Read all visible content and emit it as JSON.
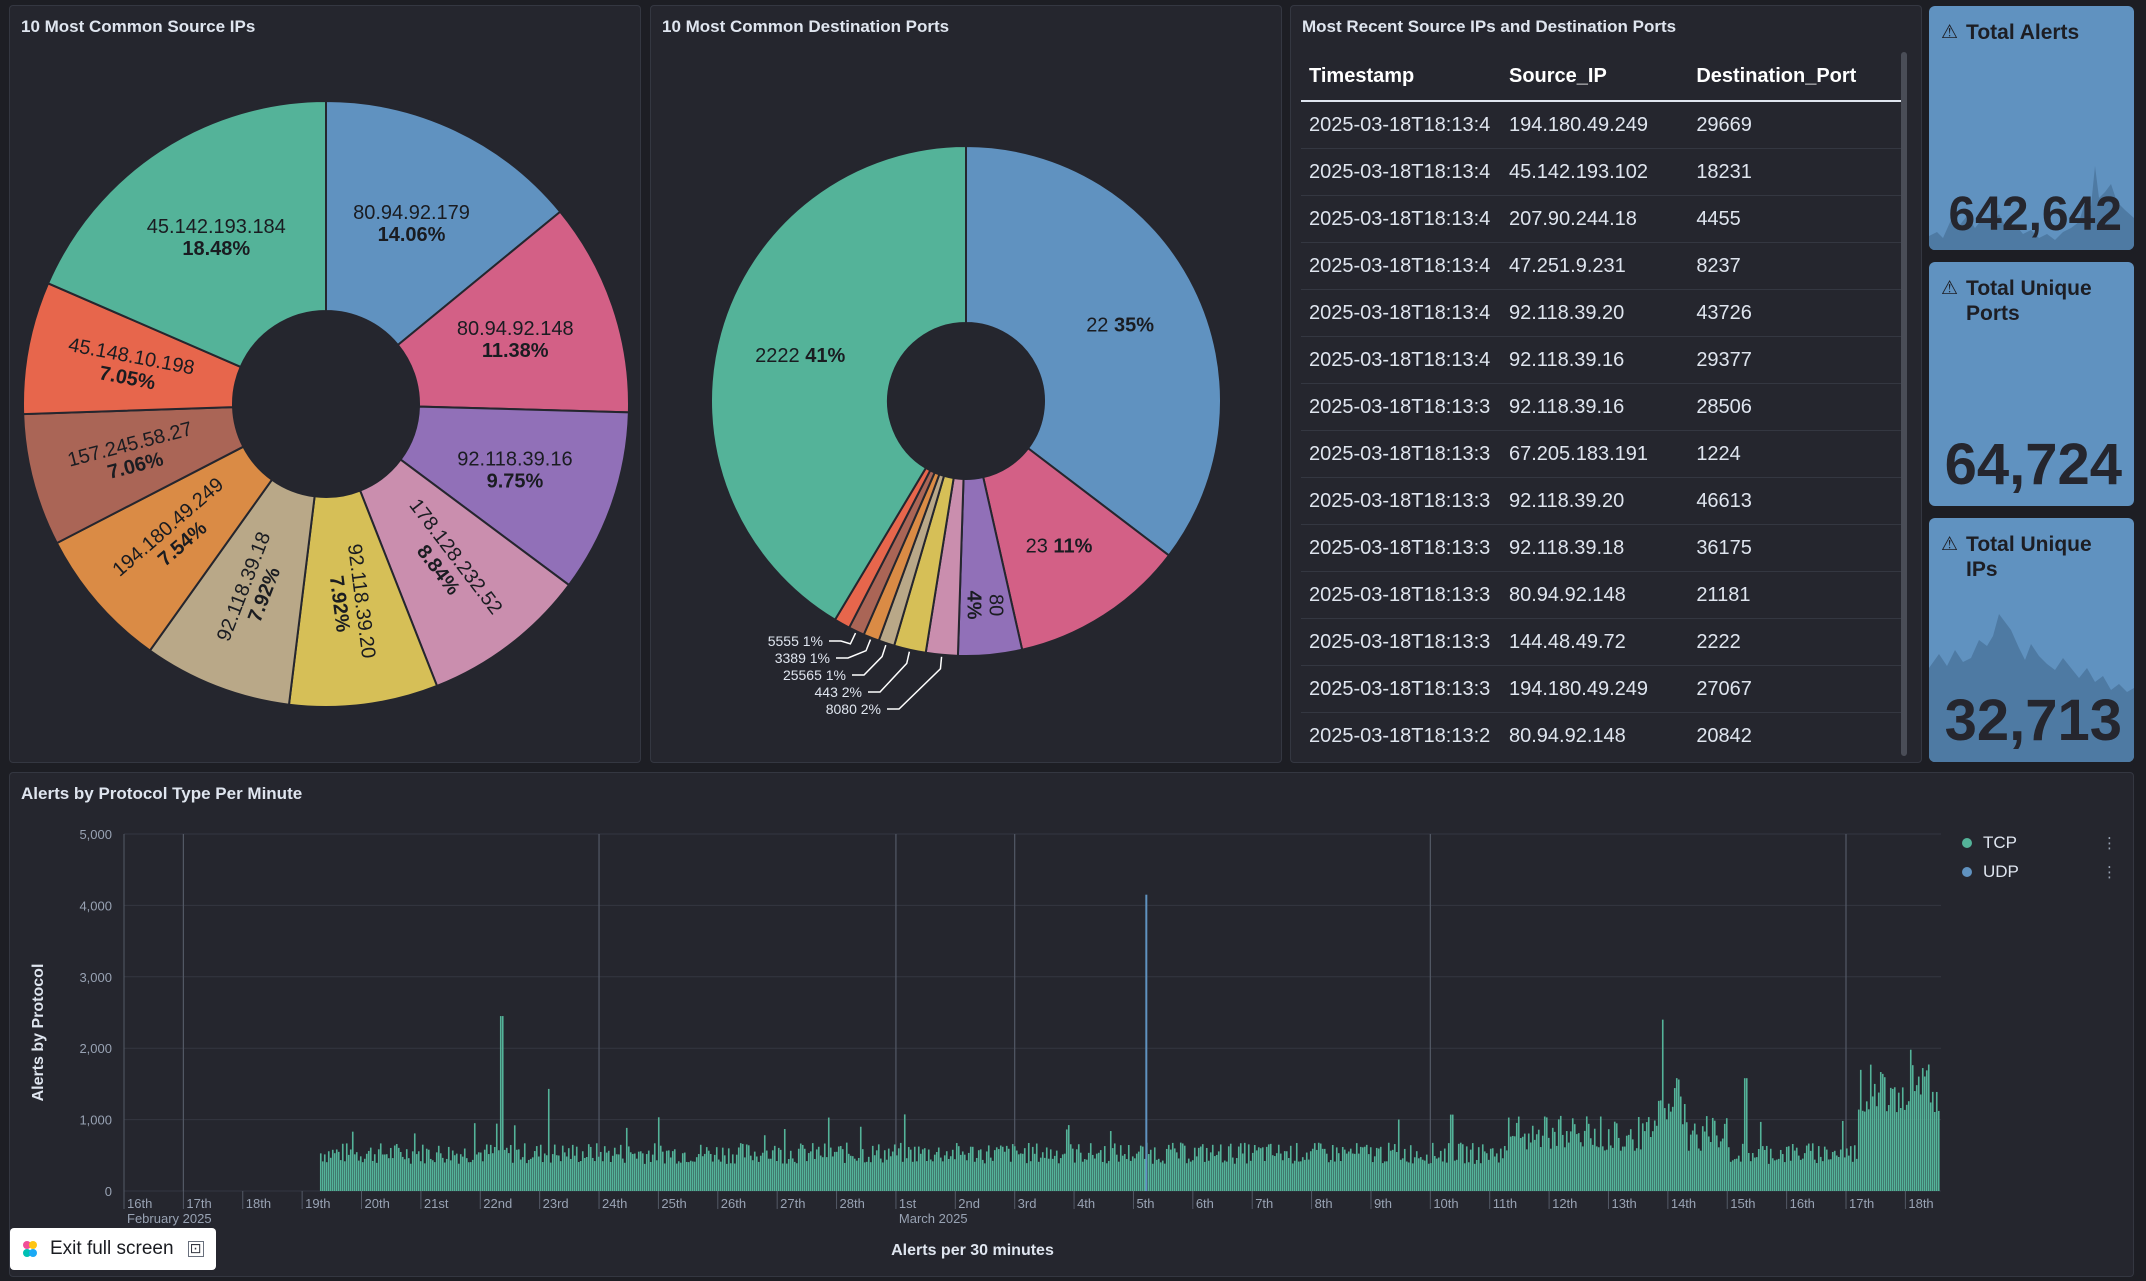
{
  "panels": {
    "source_ips": {
      "title": "10 Most Common Source IPs"
    },
    "dest_ports": {
      "title": "10 Most Common Destination Ports"
    },
    "recent": {
      "title": "Most Recent Source IPs and Destination Ports"
    },
    "protocol": {
      "title": "Alerts by Protocol Type Per Minute"
    }
  },
  "chart_data": [
    {
      "type": "pie",
      "slices": [
        {
          "label": "80.94.92.179",
          "value": 14.06,
          "pct": "14.06%",
          "color": "#6092c0"
        },
        {
          "label": "80.94.92.148",
          "value": 11.38,
          "pct": "11.38%",
          "color": "#d36086"
        },
        {
          "label": "92.118.39.16",
          "value": 9.75,
          "pct": "9.75%",
          "color": "#9170b8"
        },
        {
          "label": "178.128.232.52",
          "value": 8.84,
          "pct": "8.84%",
          "color": "#ca8eae"
        },
        {
          "label": "92.118.39.20",
          "value": 7.92,
          "pct": "7.92%",
          "color": "#d6bf57"
        },
        {
          "label": "92.118.39.18",
          "value": 7.92,
          "pct": "7.92%",
          "color": "#b9a888"
        },
        {
          "label": "194.180.49.249",
          "value": 7.54,
          "pct": "7.54%",
          "color": "#da8b45"
        },
        {
          "label": "157.245.58.27",
          "value": 7.06,
          "pct": "7.06%",
          "color": "#aa6556"
        },
        {
          "label": "45.148.10.198",
          "value": 7.05,
          "pct": "7.05%",
          "color": "#e7664c"
        },
        {
          "label": "45.142.193.184",
          "value": 18.48,
          "pct": "18.48%",
          "color": "#54b399"
        }
      ]
    },
    {
      "type": "pie",
      "slices": [
        {
          "label": "22",
          "value": 35,
          "pct": "35%",
          "color": "#6092c0"
        },
        {
          "label": "23",
          "value": 11,
          "pct": "11%",
          "color": "#d36086"
        },
        {
          "label": "80",
          "value": 4,
          "pct": "4%",
          "color": "#9170b8"
        },
        {
          "label": "8080",
          "value": 2,
          "pct": "2%",
          "color": "#ca8eae"
        },
        {
          "label": "443",
          "value": 2,
          "pct": "2%",
          "color": "#d6bf57"
        },
        {
          "label": "25565",
          "value": 1,
          "pct": "1%",
          "color": "#b9a888"
        },
        {
          "label": "3389",
          "value": 1,
          "pct": "1%",
          "color": "#da8b45"
        },
        {
          "label": "5555",
          "value": 1,
          "pct": "1%",
          "color": "#aa6556"
        },
        {
          "label": "",
          "value": 1,
          "pct": "",
          "color": "#e7664c"
        },
        {
          "label": "2222",
          "value": 41,
          "pct": "41%",
          "color": "#54b399"
        }
      ]
    },
    {
      "type": "bar",
      "title": "Alerts by Protocol Type Per Minute",
      "xlabel": "Alerts per 30 minutes",
      "ylabel": "Alerts by Protocol",
      "ylim": [
        0,
        5000
      ],
      "yticks": [
        "0",
        "1,000",
        "2,000",
        "3,000",
        "4,000",
        "5,000"
      ],
      "xticks": [
        "16th",
        "17th",
        "18th",
        "19th",
        "20th",
        "21st",
        "22nd",
        "23rd",
        "24th",
        "25th",
        "26th",
        "27th",
        "28th",
        "1st",
        "2nd",
        "3rd",
        "4th",
        "5th",
        "6th",
        "7th",
        "8th",
        "9th",
        "10th",
        "11th",
        "12th",
        "13th",
        "14th",
        "15th",
        "16th",
        "17th",
        "18th"
      ],
      "month_labels": [
        {
          "at": "16th",
          "text": "February 2025"
        },
        {
          "at": "1st",
          "text": "March 2025"
        }
      ],
      "series": [
        {
          "name": "TCP",
          "color": "#54b399",
          "description": "≈ 300–700 alerts per 30 min from the 19th, with spikes near 2,450 (22nd) and 2,400 (13th); rises to ≈ 1,200–1,900 after the 17th"
        },
        {
          "name": "UDP",
          "color": "#6092c0",
          "spike": {
            "at": "5th",
            "value": 4150
          }
        }
      ]
    }
  ],
  "recent_table": {
    "columns": [
      "Timestamp",
      "Source_IP",
      "Destination_Port"
    ],
    "rows": [
      [
        "2025-03-18T18:13:4",
        "194.180.49.249",
        "29669"
      ],
      [
        "2025-03-18T18:13:4",
        "45.142.193.102",
        "18231"
      ],
      [
        "2025-03-18T18:13:4",
        "207.90.244.18",
        "4455"
      ],
      [
        "2025-03-18T18:13:4",
        "47.251.9.231",
        "8237"
      ],
      [
        "2025-03-18T18:13:4",
        "92.118.39.20",
        "43726"
      ],
      [
        "2025-03-18T18:13:4",
        "92.118.39.16",
        "29377"
      ],
      [
        "2025-03-18T18:13:3",
        "92.118.39.16",
        "28506"
      ],
      [
        "2025-03-18T18:13:3",
        "67.205.183.191",
        "1224"
      ],
      [
        "2025-03-18T18:13:3",
        "92.118.39.20",
        "46613"
      ],
      [
        "2025-03-18T18:13:3",
        "92.118.39.18",
        "36175"
      ],
      [
        "2025-03-18T18:13:3",
        "80.94.92.148",
        "21181"
      ],
      [
        "2025-03-18T18:13:3",
        "144.48.49.72",
        "2222"
      ],
      [
        "2025-03-18T18:13:3",
        "194.180.49.249",
        "27067"
      ],
      [
        "2025-03-18T18:13:2",
        "80.94.92.148",
        "20842"
      ]
    ]
  },
  "metrics": [
    {
      "title": "Total Alerts",
      "value": "642,642",
      "icon": "warning-icon"
    },
    {
      "title": "Total Unique Ports",
      "value": "64,724",
      "icon": "warning-icon"
    },
    {
      "title": "Total Unique IPs",
      "value": "32,713",
      "icon": "warning-icon"
    }
  ],
  "legend": [
    {
      "name": "TCP",
      "color": "#54b399"
    },
    {
      "name": "UDP",
      "color": "#6092c0"
    }
  ],
  "exit_button": {
    "label": "Exit full screen",
    "icon": "fullscreen-exit-icon"
  }
}
